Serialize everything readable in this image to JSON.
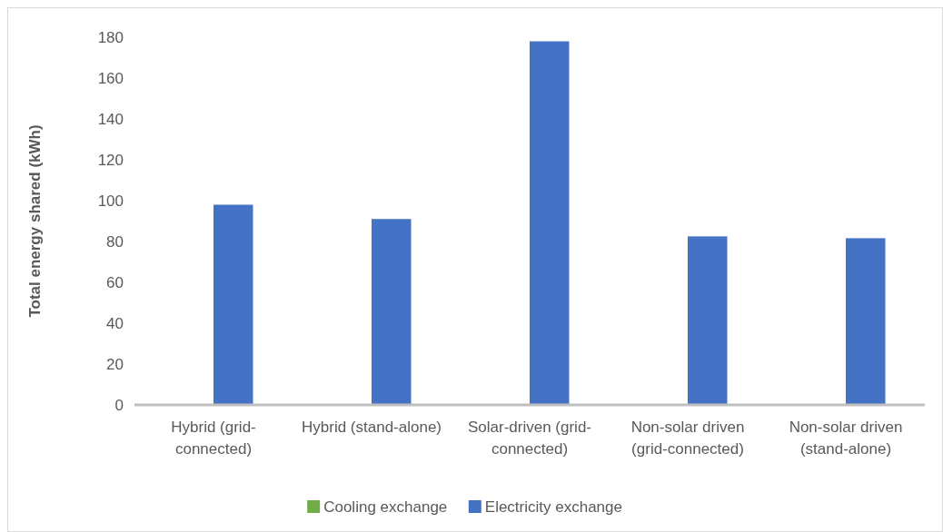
{
  "chart_data": {
    "type": "bar",
    "ylabel": "Total energy shared (kWh)",
    "categories": [
      "Hybrid (grid-connected)",
      "Hybrid (stand-alone)",
      "Solar-driven (grid-connected)",
      "Non-solar driven (grid-connected)",
      "Non-solar driven (stand-alone)"
    ],
    "series": [
      {
        "name": "Cooling exchange",
        "color": "#70ad47",
        "values": [
          0,
          0,
          0,
          0,
          0
        ]
      },
      {
        "name": "Electricity exchange",
        "color": "#4472c4",
        "values": [
          98,
          91,
          178,
          82.5,
          81.6
        ]
      }
    ],
    "ylim": [
      0,
      180
    ],
    "yticks": [
      0,
      20,
      40,
      60,
      80,
      100,
      120,
      140,
      160,
      180
    ],
    "grid": false,
    "legend": "bottom"
  }
}
